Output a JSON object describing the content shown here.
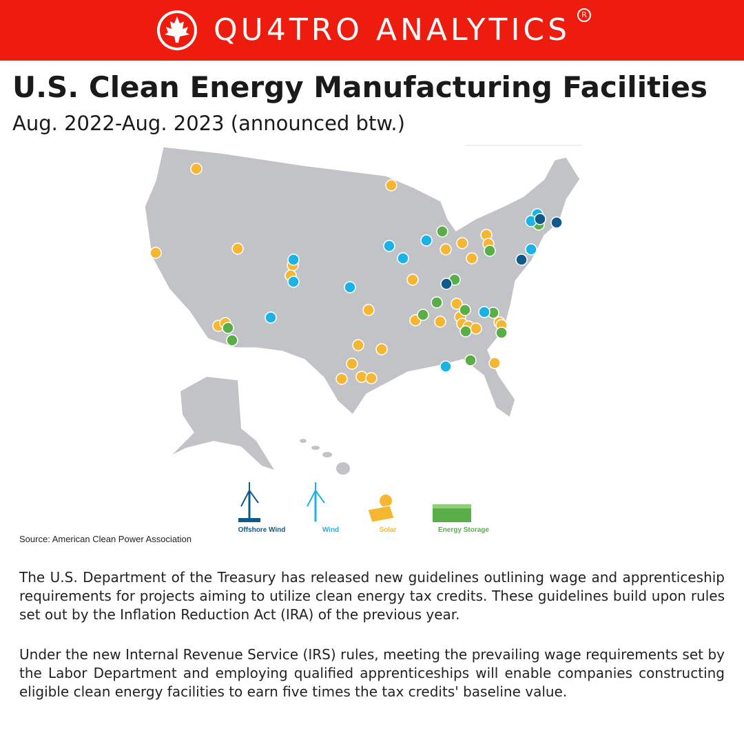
{
  "header": {
    "brand": "QU4TRO ANALYTICS",
    "registered": "R"
  },
  "title": "U.S. Clean Energy Manufacturing Facilities",
  "subtitle": "Aug. 2022-Aug. 2023 (announced btw.)",
  "legend": [
    "Offshore Wind",
    "Wind",
    "Solar",
    "Energy Storage"
  ],
  "source": "Source: American Clean Power Association",
  "paragraphs": [
    "The U.S. Department of the Treasury has released new guidelines outlining wage and apprenticeship requirements for projects aiming to utilize clean energy tax credits. These guidelines build upon rules set out by the Inflation Reduction Act (IRA) of the previous year.",
    "Under the new Internal Revenue Service (IRS) rules, meeting the prevailing wage requirements set by the Labor Department and employing qualified apprenticeships will enable companies constructing eligible clean energy facilities to earn five times the tax credits' baseline value."
  ]
}
